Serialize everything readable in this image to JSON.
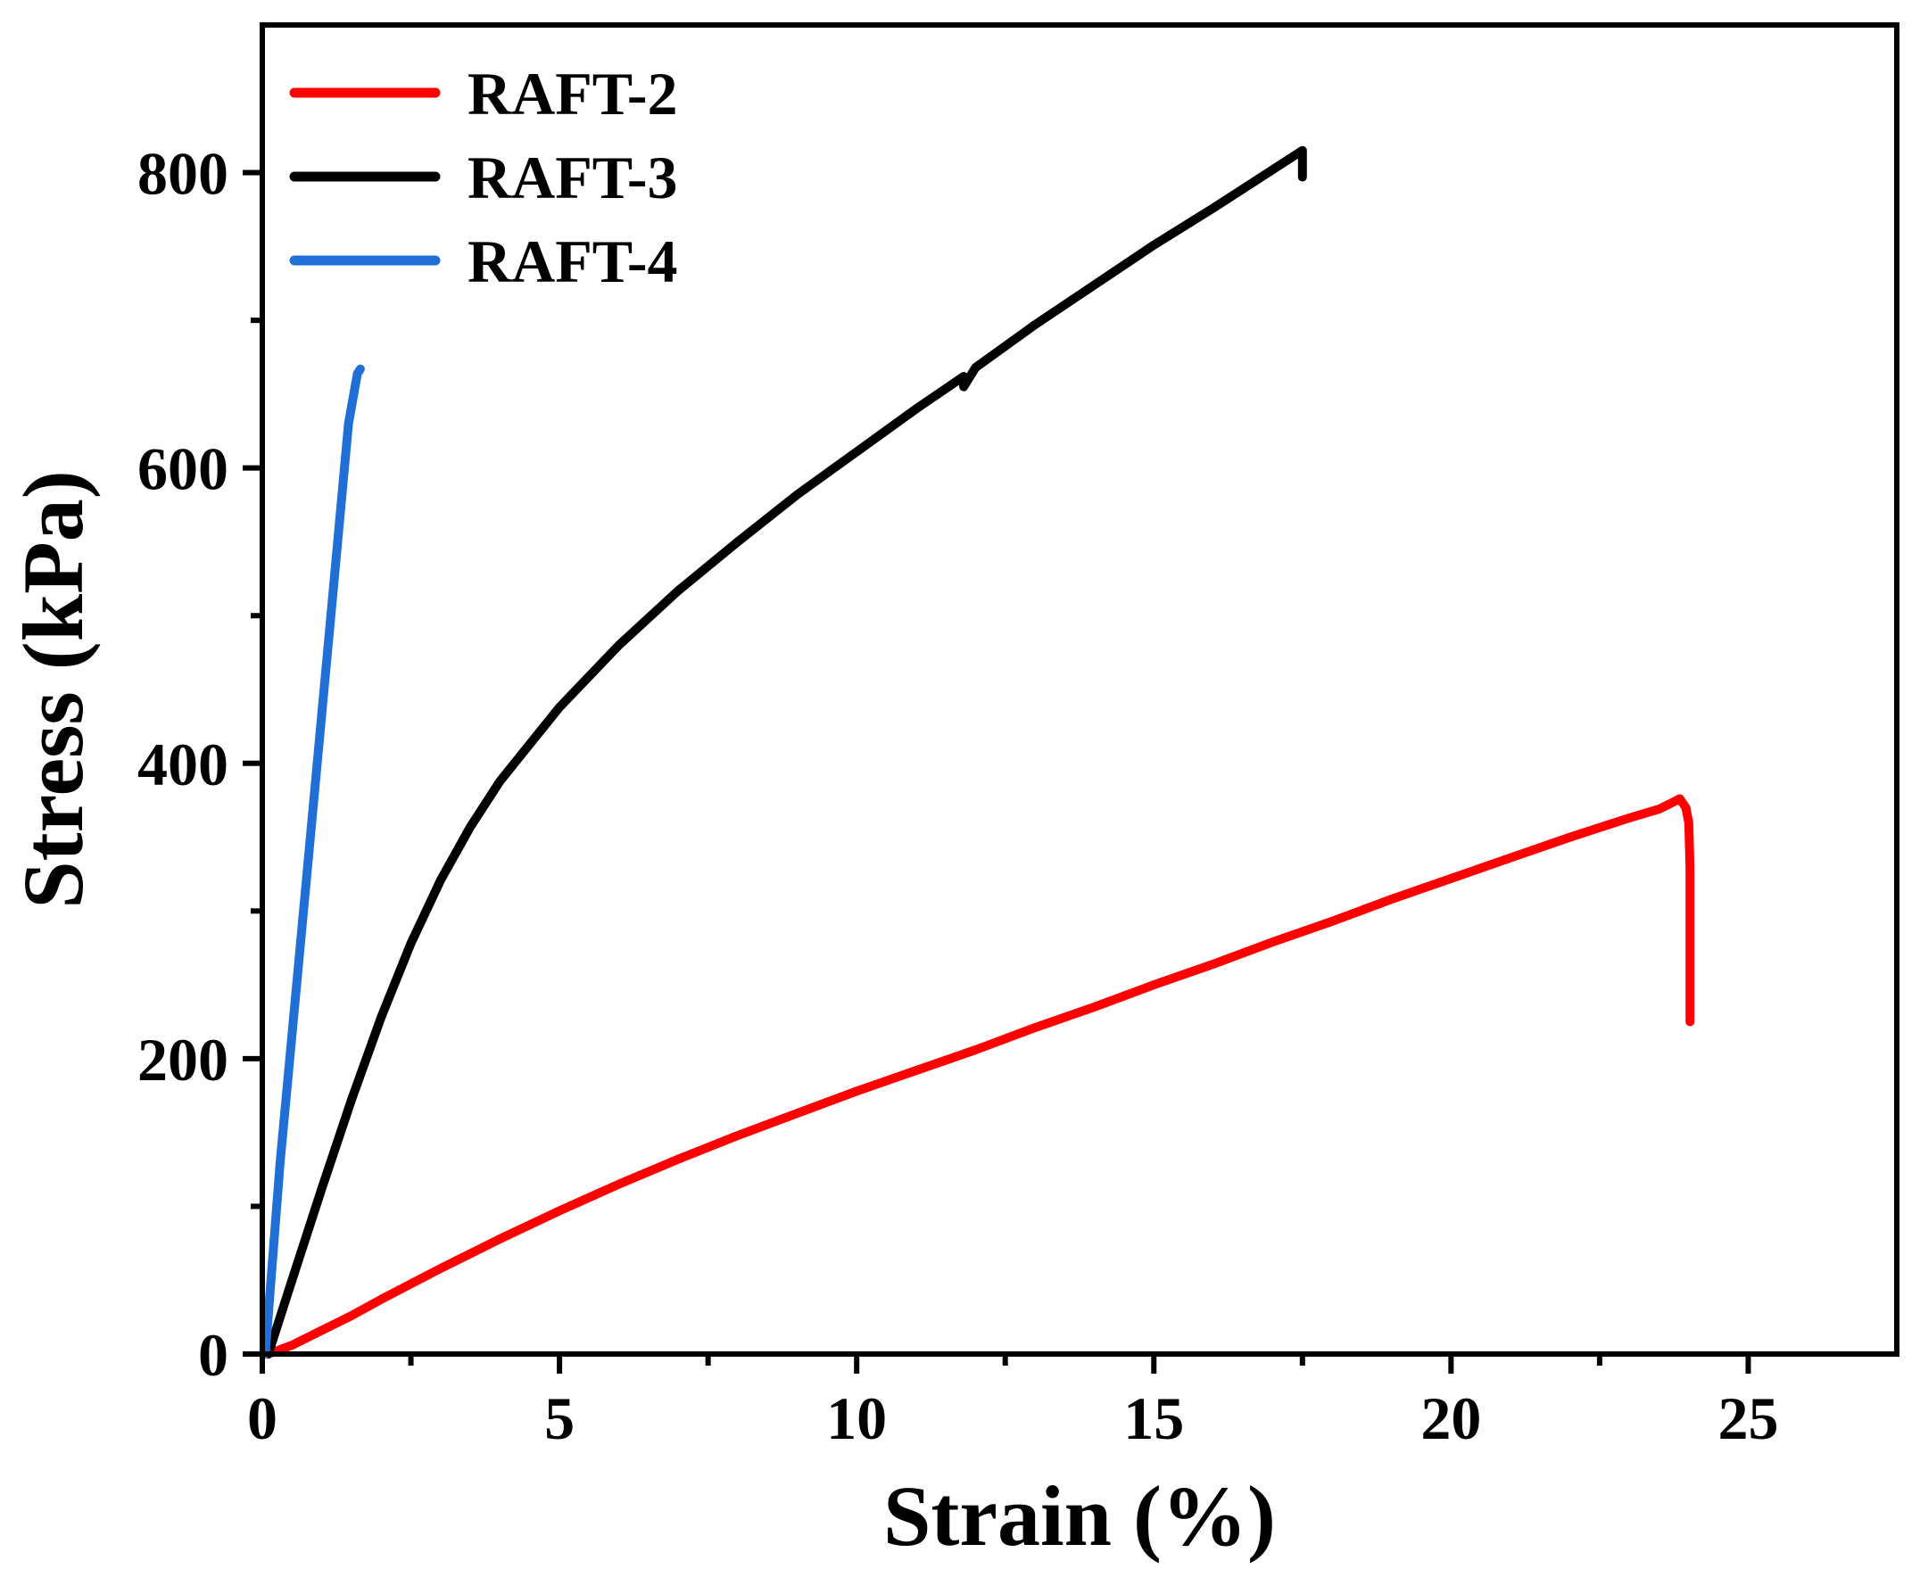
{
  "chart_data": {
    "type": "line",
    "title": "",
    "xlabel": "Strain (%)",
    "ylabel": "Stress (kPa)",
    "xlim": [
      0,
      27.5
    ],
    "ylim": [
      0,
      900
    ],
    "x_ticks": [
      0,
      5,
      10,
      15,
      20,
      25
    ],
    "x_tick_labels": [
      "0",
      "5",
      "10",
      "15",
      "20",
      "25"
    ],
    "x_minor_ticks": [
      2.5,
      7.5,
      12.5,
      17.5,
      22.5
    ],
    "y_ticks": [
      0,
      200,
      400,
      600,
      800
    ],
    "y_tick_labels": [
      "0",
      "200",
      "400",
      "600",
      "800"
    ],
    "y_minor_ticks": [
      100,
      300,
      500,
      700
    ],
    "grid": false,
    "legend_position": "top-left",
    "series": [
      {
        "name": "RAFT-2",
        "color": "#ff0000",
        "points": [
          [
            0.1,
            0
          ],
          [
            0.5,
            6
          ],
          [
            1,
            16
          ],
          [
            1.5,
            26
          ],
          [
            2,
            37
          ],
          [
            3,
            58
          ],
          [
            4,
            78
          ],
          [
            5,
            97
          ],
          [
            6,
            115
          ],
          [
            7,
            132
          ],
          [
            8,
            148
          ],
          [
            9,
            163
          ],
          [
            10,
            178
          ],
          [
            11,
            192
          ],
          [
            12,
            206
          ],
          [
            13,
            221
          ],
          [
            14,
            235
          ],
          [
            15,
            250
          ],
          [
            16,
            264
          ],
          [
            17,
            279
          ],
          [
            18,
            293
          ],
          [
            19,
            308
          ],
          [
            20,
            322
          ],
          [
            21,
            336
          ],
          [
            22,
            350
          ],
          [
            23,
            363
          ],
          [
            23.5,
            369
          ],
          [
            23.8,
            375
          ],
          [
            23.85,
            376
          ],
          [
            23.95,
            370
          ],
          [
            24.0,
            360
          ],
          [
            24.02,
            330
          ],
          [
            24.02,
            225
          ]
        ]
      },
      {
        "name": "RAFT-3",
        "color": "#000000",
        "points": [
          [
            0.1,
            0
          ],
          [
            0.5,
            50
          ],
          [
            1,
            112
          ],
          [
            1.5,
            172
          ],
          [
            2,
            228
          ],
          [
            2.5,
            278
          ],
          [
            3,
            321
          ],
          [
            3.5,
            357
          ],
          [
            4,
            388
          ],
          [
            5,
            438
          ],
          [
            6,
            480
          ],
          [
            7,
            517
          ],
          [
            8,
            550
          ],
          [
            9,
            582
          ],
          [
            10,
            611
          ],
          [
            11,
            640
          ],
          [
            11.8,
            662
          ],
          [
            11.8,
            655
          ],
          [
            12,
            668
          ],
          [
            13,
            697
          ],
          [
            14,
            724
          ],
          [
            15,
            751
          ],
          [
            16,
            776
          ],
          [
            17,
            802
          ],
          [
            17.5,
            815
          ],
          [
            17.5,
            797
          ]
        ]
      },
      {
        "name": "RAFT-4",
        "color": "#1f6fd6",
        "points": [
          [
            0.05,
            0
          ],
          [
            0.3,
            130
          ],
          [
            0.6,
            260
          ],
          [
            0.9,
            390
          ],
          [
            1.2,
            520
          ],
          [
            1.45,
            630
          ],
          [
            1.6,
            664
          ],
          [
            1.65,
            667
          ]
        ]
      }
    ]
  }
}
